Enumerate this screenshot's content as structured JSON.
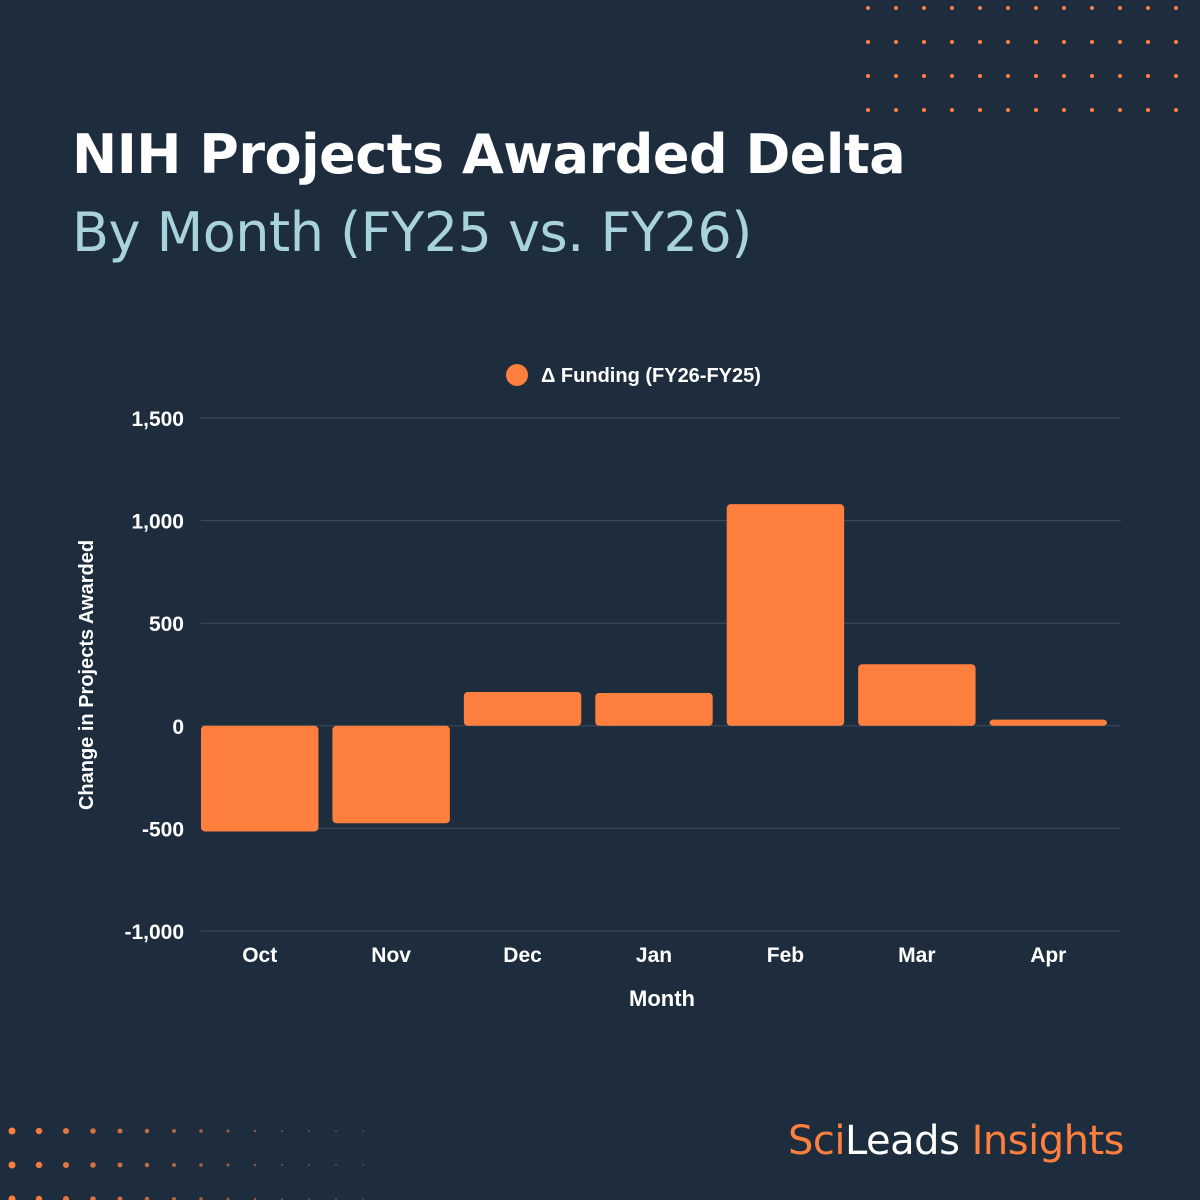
{
  "title": {
    "line1": "NIH Projects Awarded Delta",
    "line2": "By Month (FY25 vs. FY26)"
  },
  "brand": {
    "part1": "Sci",
    "part2": "Leads",
    "part3": " Insights"
  },
  "colors": {
    "background": "#1e2d3d",
    "bar": "#ff7f3f",
    "title_accent": "#a9d3dc",
    "grid": "#3f4d5c",
    "text": "#ffffff"
  },
  "chart_data": {
    "type": "bar",
    "categories": [
      "Oct",
      "Nov",
      "Dec",
      "Jan",
      "Feb",
      "Mar",
      "Apr"
    ],
    "series": [
      {
        "name": "Δ Funding (FY26-FY25)",
        "values": [
          -515,
          -475,
          165,
          160,
          1080,
          300,
          30
        ]
      }
    ],
    "xlabel": "Month",
    "ylabel": "Change in Projects Awarded",
    "ylim": [
      -1000,
      1500
    ],
    "yticks": [
      1500,
      1000,
      500,
      0,
      -500,
      -1000
    ],
    "ytick_labels": [
      "1,500",
      "1,000",
      "500",
      "0",
      "-500",
      "-1,000"
    ],
    "grid": true,
    "legend": "top-center"
  }
}
